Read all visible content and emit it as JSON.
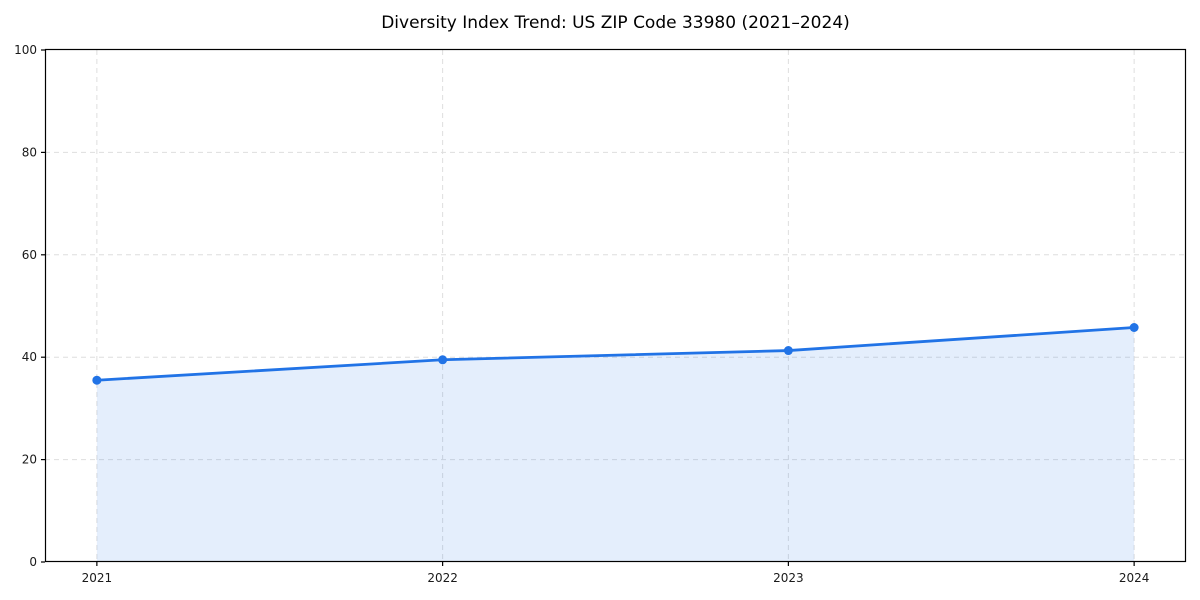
{
  "chart_data": {
    "type": "line",
    "title": "Diversity Index Trend: US ZIP Code 33980 (2021–2024)",
    "xlabel": "",
    "ylabel": "",
    "x": [
      2021,
      2022,
      2023,
      2024
    ],
    "series": [
      {
        "name": "Diversity Index",
        "values": [
          35.5,
          39.5,
          41.3,
          45.8
        ]
      }
    ],
    "xticks": [
      "2021",
      "2022",
      "2023",
      "2024"
    ],
    "yticks": [
      0,
      20,
      40,
      60,
      80,
      100
    ],
    "xlim": [
      2020.85,
      2024.15
    ],
    "ylim": [
      0,
      100
    ],
    "grid": true,
    "grid_style": "dashed",
    "legend_position": "none",
    "area_fill": true,
    "markers": true,
    "colors": {
      "line": "#2173e6",
      "marker": "#2173e6",
      "fill": "#2173e6",
      "fill_opacity": 0.12,
      "grid": "#dedede",
      "spine": "#000000",
      "tick_text": "#1a1a1a",
      "background": "#ffffff"
    }
  }
}
